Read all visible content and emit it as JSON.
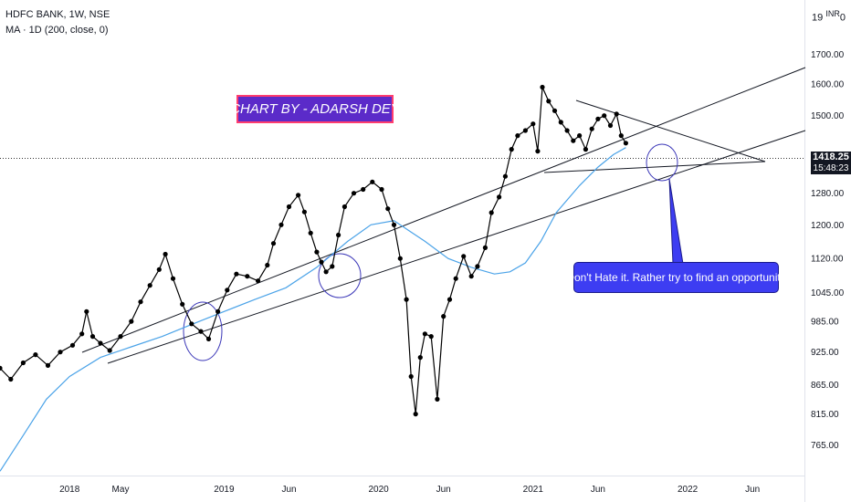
{
  "header": {
    "title": "HDFC BANK, 1W, NSE",
    "indicator": "MA · 1D (200, close, 0)",
    "currency_prefix": "19",
    "currency": "INR",
    "currency_suffix": "0"
  },
  "annotations": {
    "banner": "CHART BY - ADARSH DEY",
    "note": "Don't Hate it. Rather try to find an opportunity"
  },
  "last_price": {
    "value": "1418.25",
    "countdown": "15:48:23"
  },
  "colors": {
    "price": "#000000",
    "ma": "#4ba3e8",
    "circle": "#3b37b8",
    "banner_bg": "#5b2bc9",
    "banner_border": "#ff3d6e",
    "note_bg": "#3d3df2",
    "tag_bg": "#131722"
  },
  "chart_data": {
    "type": "line",
    "title": "HDFC BANK, 1W, NSE",
    "y_scale": "log",
    "ylim": [
      720,
      1900
    ],
    "xlim": [
      2017.55,
      2022.75
    ],
    "y_ticks": [
      "1700.00",
      "1600.00",
      "1500.00",
      "1280.00",
      "1200.00",
      "1120.00",
      "1045.00",
      "985.00",
      "925.00",
      "865.00",
      "815.00",
      "765.00"
    ],
    "x_ticks": [
      {
        "label": "2018",
        "x": 2018.0
      },
      {
        "label": "May",
        "x": 2018.33
      },
      {
        "label": "2019",
        "x": 2019.0
      },
      {
        "label": "Jun",
        "x": 2019.42
      },
      {
        "label": "2020",
        "x": 2020.0
      },
      {
        "label": "Jun",
        "x": 2020.42
      },
      {
        "label": "2021",
        "x": 2021.0
      },
      {
        "label": "Jun",
        "x": 2021.42
      },
      {
        "label": "2022",
        "x": 2022.0
      },
      {
        "label": "Jun",
        "x": 2022.42
      }
    ],
    "series": [
      {
        "type": "line",
        "points": [
          [
            2017.55,
            895
          ],
          [
            2017.62,
            875
          ],
          [
            2017.7,
            905
          ],
          [
            2017.78,
            920
          ],
          [
            2017.86,
            900
          ],
          [
            2017.94,
            925
          ],
          [
            2018.02,
            938
          ],
          [
            2018.08,
            960
          ],
          [
            2018.11,
            1005
          ],
          [
            2018.15,
            955
          ],
          [
            2018.2,
            942
          ],
          [
            2018.26,
            928
          ],
          [
            2018.33,
            955
          ],
          [
            2018.4,
            985
          ],
          [
            2018.46,
            1025
          ],
          [
            2018.52,
            1060
          ],
          [
            2018.58,
            1095
          ],
          [
            2018.62,
            1130
          ],
          [
            2018.67,
            1075
          ],
          [
            2018.73,
            1020
          ],
          [
            2018.79,
            980
          ],
          [
            2018.85,
            965
          ],
          [
            2018.9,
            950
          ],
          [
            2018.96,
            1005
          ],
          [
            2019.02,
            1050
          ],
          [
            2019.08,
            1085
          ],
          [
            2019.15,
            1080
          ],
          [
            2019.22,
            1070
          ],
          [
            2019.28,
            1105
          ],
          [
            2019.32,
            1155
          ],
          [
            2019.37,
            1200
          ],
          [
            2019.42,
            1245
          ],
          [
            2019.48,
            1275
          ],
          [
            2019.52,
            1232
          ],
          [
            2019.56,
            1180
          ],
          [
            2019.6,
            1135
          ],
          [
            2019.63,
            1112
          ],
          [
            2019.66,
            1090
          ],
          [
            2019.7,
            1102
          ],
          [
            2019.74,
            1175
          ],
          [
            2019.78,
            1245
          ],
          [
            2019.84,
            1280
          ],
          [
            2019.9,
            1290
          ],
          [
            2019.96,
            1310
          ],
          [
            2020.02,
            1290
          ],
          [
            2020.06,
            1240
          ],
          [
            2020.1,
            1200
          ],
          [
            2020.14,
            1120
          ],
          [
            2020.18,
            1030
          ],
          [
            2020.21,
            880
          ],
          [
            2020.24,
            815
          ],
          [
            2020.27,
            915
          ],
          [
            2020.3,
            960
          ],
          [
            2020.34,
            955
          ],
          [
            2020.38,
            840
          ],
          [
            2020.42,
            995
          ],
          [
            2020.46,
            1030
          ],
          [
            2020.5,
            1075
          ],
          [
            2020.55,
            1125
          ],
          [
            2020.6,
            1080
          ],
          [
            2020.64,
            1102
          ],
          [
            2020.69,
            1145
          ],
          [
            2020.73,
            1230
          ],
          [
            2020.78,
            1270
          ],
          [
            2020.82,
            1325
          ],
          [
            2020.86,
            1400
          ],
          [
            2020.9,
            1440
          ],
          [
            2020.95,
            1455
          ],
          [
            2021.0,
            1475
          ],
          [
            2021.03,
            1395
          ],
          [
            2021.06,
            1590
          ],
          [
            2021.1,
            1545
          ],
          [
            2021.14,
            1515
          ],
          [
            2021.18,
            1480
          ],
          [
            2021.22,
            1455
          ],
          [
            2021.26,
            1425
          ],
          [
            2021.3,
            1440
          ],
          [
            2021.34,
            1400
          ],
          [
            2021.38,
            1460
          ],
          [
            2021.42,
            1490
          ],
          [
            2021.46,
            1500
          ],
          [
            2021.5,
            1470
          ],
          [
            2021.54,
            1505
          ],
          [
            2021.57,
            1440
          ],
          [
            2021.6,
            1418
          ]
        ]
      },
      {
        "type": "line",
        "points": [
          [
            2017.55,
            725
          ],
          [
            2017.7,
            780
          ],
          [
            2017.85,
            840
          ],
          [
            2018.0,
            880
          ],
          [
            2018.2,
            915
          ],
          [
            2018.4,
            935
          ],
          [
            2018.6,
            955
          ],
          [
            2018.8,
            980
          ],
          [
            2019.0,
            1005
          ],
          [
            2019.2,
            1030
          ],
          [
            2019.4,
            1055
          ],
          [
            2019.6,
            1100
          ],
          [
            2019.8,
            1160
          ],
          [
            2019.95,
            1200
          ],
          [
            2020.1,
            1210
          ],
          [
            2020.3,
            1160
          ],
          [
            2020.45,
            1120
          ],
          [
            2020.6,
            1100
          ],
          [
            2020.75,
            1085
          ],
          [
            2020.85,
            1090
          ],
          [
            2020.95,
            1110
          ],
          [
            2021.05,
            1160
          ],
          [
            2021.15,
            1230
          ],
          [
            2021.3,
            1300
          ],
          [
            2021.42,
            1350
          ],
          [
            2021.52,
            1385
          ],
          [
            2021.6,
            1405
          ]
        ]
      }
    ]
  }
}
